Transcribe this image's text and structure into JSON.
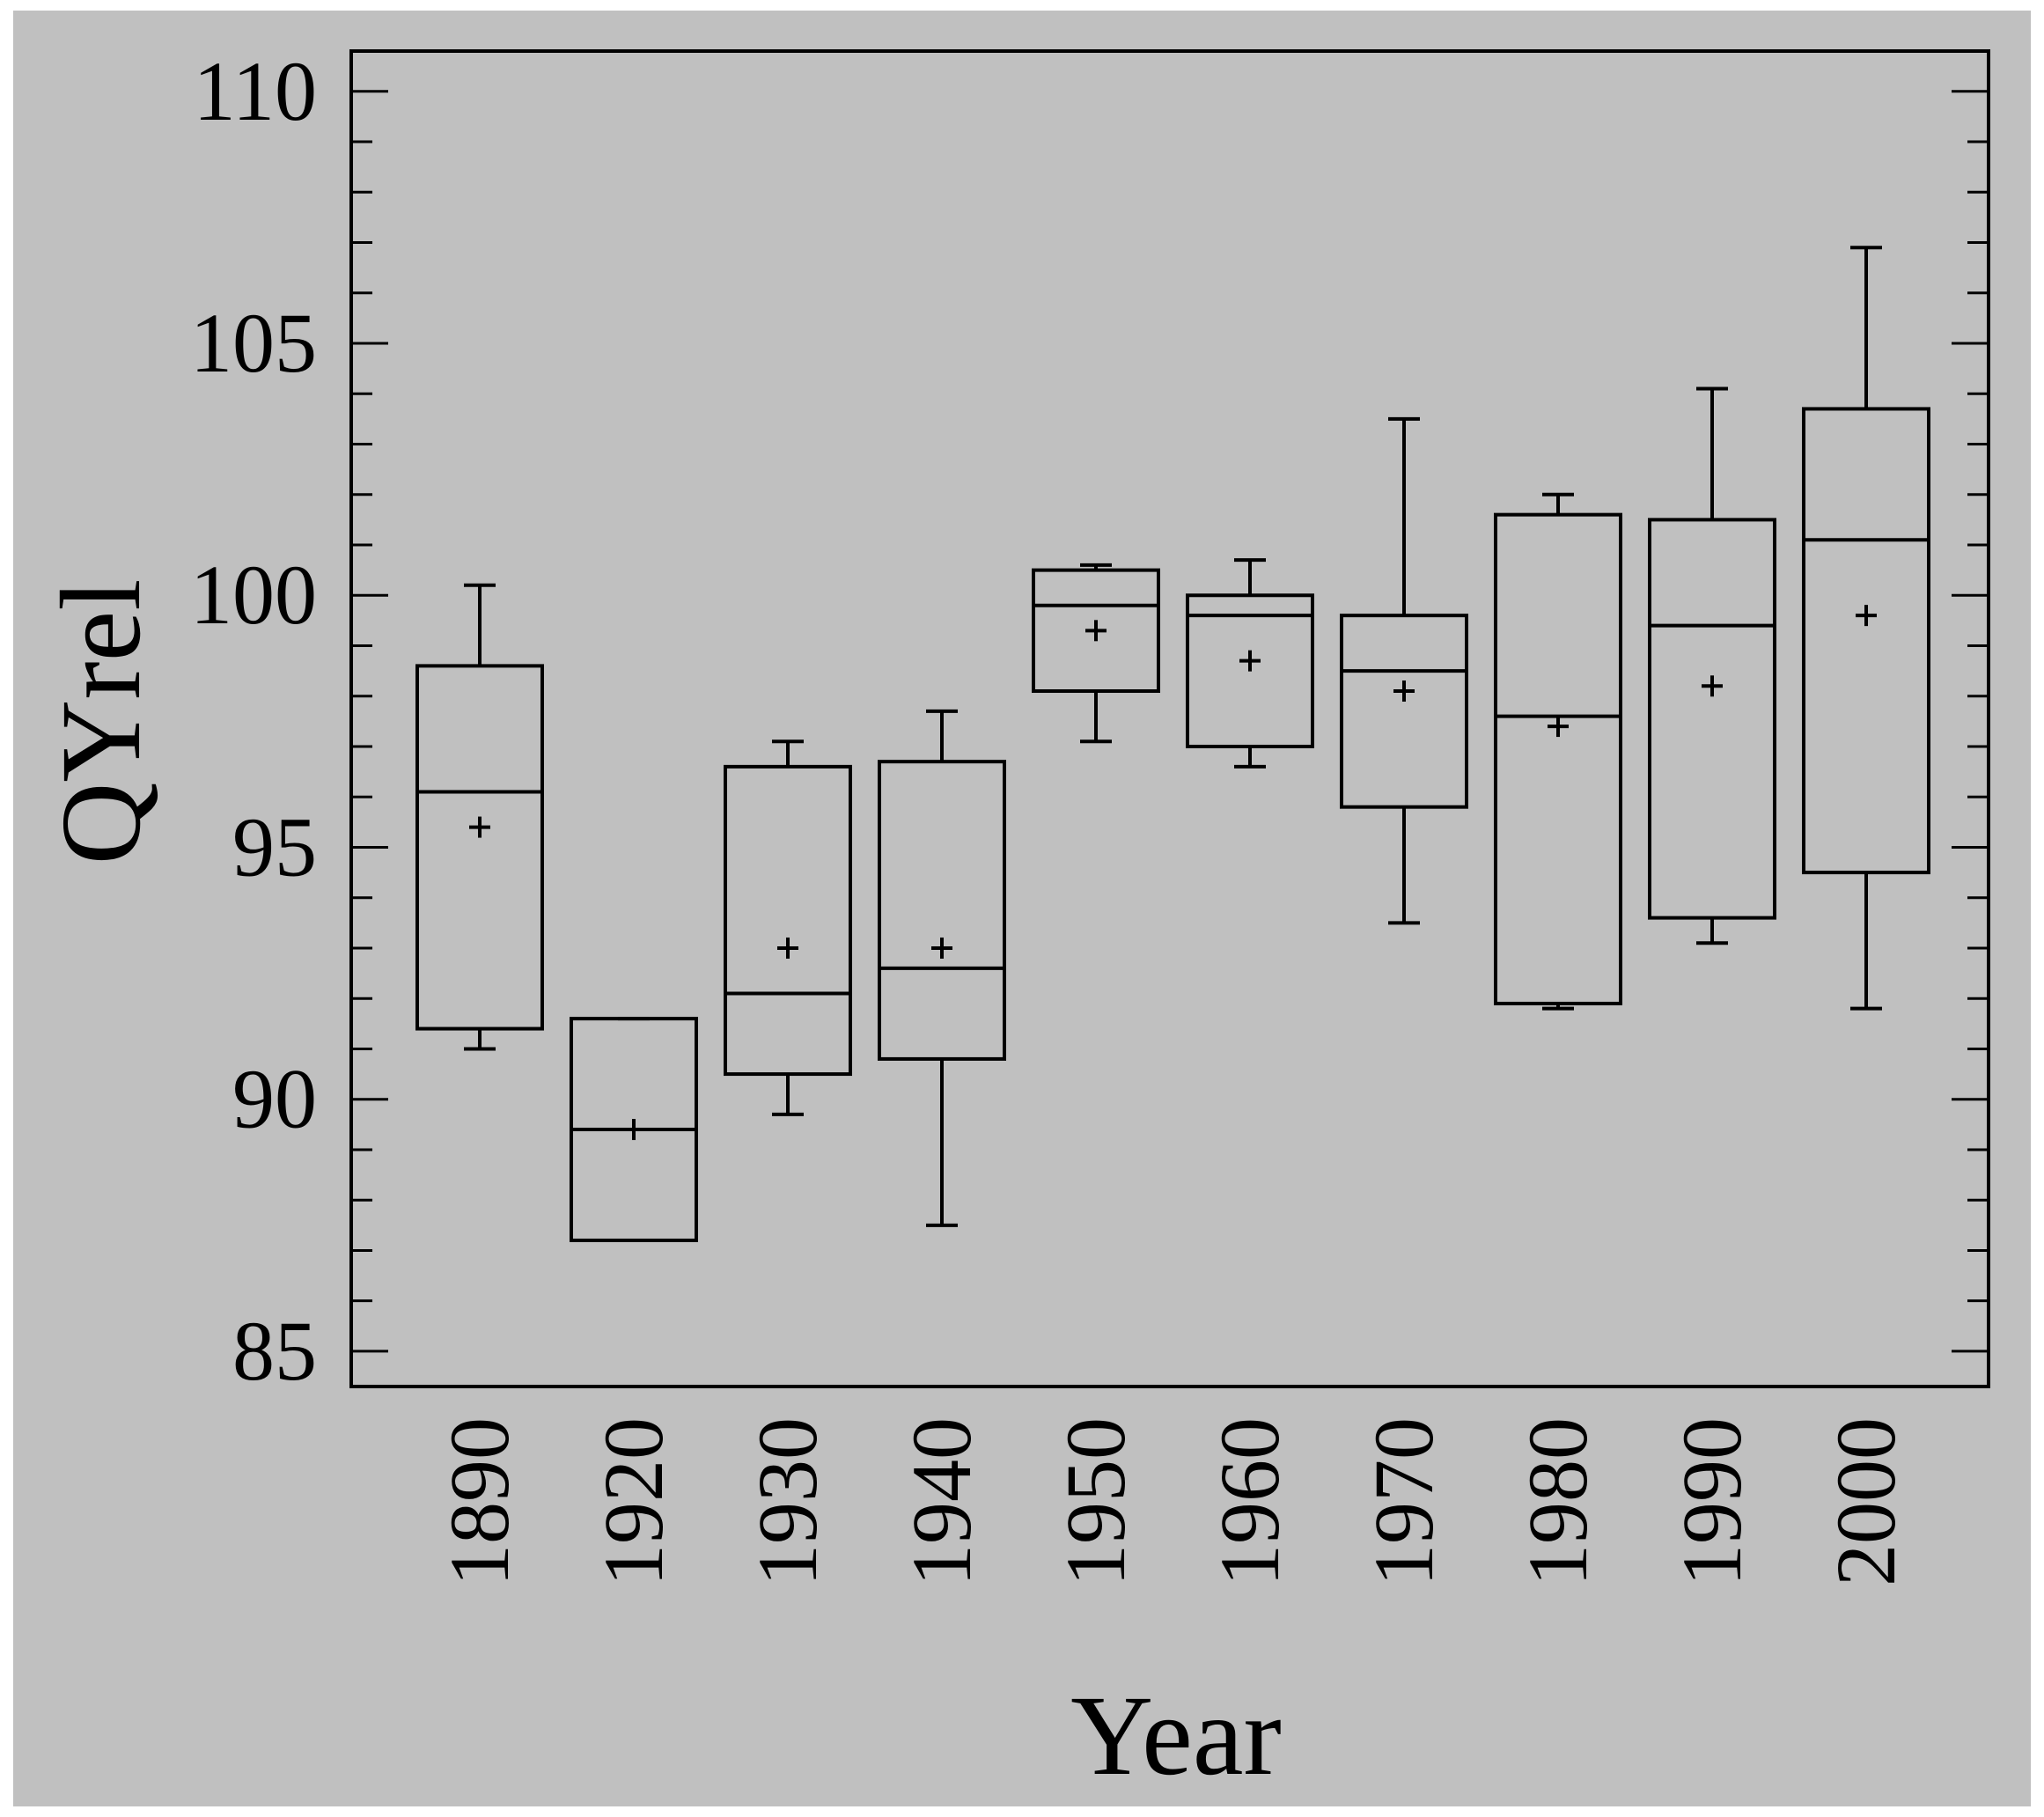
{
  "chart_data": {
    "type": "box",
    "xlabel": "Year",
    "ylabel": "QYrel",
    "ylim": [
      84.3,
      110.8
    ],
    "yticks": [
      85,
      90,
      95,
      100,
      105,
      110
    ],
    "background_color": "#c0c0c0",
    "box_color": "#000000",
    "categories": [
      "1890",
      "1920",
      "1930",
      "1940",
      "1950",
      "1960",
      "1970",
      "1980",
      "1990",
      "2000"
    ],
    "boxes": [
      {
        "category": "1890",
        "whisker_low": 91.0,
        "q1": 91.4,
        "median": 96.1,
        "q3": 98.6,
        "whisker_high": 100.2,
        "mean": 95.4
      },
      {
        "category": "1920",
        "whisker_low": 87.2,
        "q1": 87.2,
        "median": 89.4,
        "q3": 91.6,
        "whisker_high": 91.6,
        "mean": 89.4
      },
      {
        "category": "1930",
        "whisker_low": 89.7,
        "q1": 90.5,
        "median": 92.1,
        "q3": 96.6,
        "whisker_high": 97.1,
        "mean": 93.0
      },
      {
        "category": "1940",
        "whisker_low": 87.5,
        "q1": 90.8,
        "median": 92.6,
        "q3": 96.7,
        "whisker_high": 97.7,
        "mean": 93.0
      },
      {
        "category": "1950",
        "whisker_low": 97.1,
        "q1": 98.1,
        "median": 99.8,
        "q3": 100.5,
        "whisker_high": 100.6,
        "mean": 99.3
      },
      {
        "category": "1960",
        "whisker_low": 96.6,
        "q1": 97.0,
        "median": 99.6,
        "q3": 100.0,
        "whisker_high": 100.7,
        "mean": 98.7
      },
      {
        "category": "1970",
        "whisker_low": 93.5,
        "q1": 95.8,
        "median": 98.5,
        "q3": 99.6,
        "whisker_high": 103.5,
        "mean": 98.1
      },
      {
        "category": "1980",
        "whisker_low": 91.8,
        "q1": 91.9,
        "median": 97.6,
        "q3": 101.6,
        "whisker_high": 102.0,
        "mean": 97.4
      },
      {
        "category": "1990",
        "whisker_low": 93.1,
        "q1": 93.6,
        "median": 99.4,
        "q3": 101.5,
        "whisker_high": 104.1,
        "mean": 98.2
      },
      {
        "category": "2000",
        "whisker_low": 91.8,
        "q1": 94.5,
        "median": 101.1,
        "q3": 103.7,
        "whisker_high": 106.9,
        "mean": 99.6
      }
    ]
  }
}
